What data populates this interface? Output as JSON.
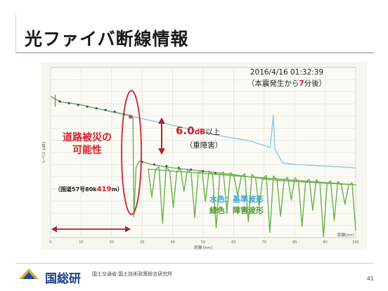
{
  "slide": {
    "title": "光ファイバ断線情報",
    "page_number": "41",
    "org_logo": "国総研",
    "org_name_jp": "国土交通省 国土技術政策総合研究所"
  },
  "chart_data": {
    "type": "line",
    "xlabel": "距離 [km]",
    "x_unit_label": "距離[km]",
    "ylabel": "レベル [dB]",
    "x_ticks": [
      "0",
      "10",
      "20",
      "30",
      "40",
      "50",
      "60",
      "70",
      "80",
      "90",
      "100"
    ],
    "xlim": [
      0,
      100
    ],
    "ylim": [
      0,
      1
    ],
    "grid": true,
    "series": [
      {
        "name": "水色：基準波形",
        "color": "#8cc8e6",
        "points": [
          [
            0,
            0.83
          ],
          [
            3,
            0.8
          ],
          [
            10,
            0.78
          ],
          [
            20,
            0.74
          ],
          [
            27,
            0.71
          ],
          [
            35,
            0.68
          ],
          [
            45,
            0.64
          ],
          [
            55,
            0.6
          ],
          [
            65,
            0.57
          ],
          [
            72,
            0.53
          ],
          [
            73,
            0.72
          ],
          [
            73.5,
            0.52
          ],
          [
            76,
            0.44
          ],
          [
            80,
            0.43
          ],
          [
            90,
            0.42
          ],
          [
            100,
            0.41
          ]
        ]
      },
      {
        "name": "緑色：障害波形",
        "color": "#6ab04c",
        "points": [
          [
            0,
            0.83
          ],
          [
            3,
            0.8
          ],
          [
            10,
            0.78
          ],
          [
            20,
            0.74
          ],
          [
            26,
            0.72
          ],
          [
            27,
            0.71
          ],
          [
            27.3,
            0.12
          ],
          [
            28,
            0.41
          ],
          [
            29,
            0.45
          ],
          [
            33,
            0.43
          ],
          [
            40,
            0.41
          ],
          [
            50,
            0.39
          ],
          [
            60,
            0.37
          ],
          [
            72,
            0.34
          ],
          [
            80,
            0.33
          ],
          [
            90,
            0.32
          ],
          [
            100,
            0.31
          ]
        ]
      }
    ],
    "annotations": {
      "timestamp": "2016/4/16 01:32:39",
      "timestamp_note_prefix": "（本震発生から",
      "timestamp_note_number": "7",
      "timestamp_note_suffix": "分後）",
      "loss_value": "6.0",
      "loss_unit": "dB",
      "loss_suffix": "以上",
      "loss_note": "（重障害）",
      "hazard_label_line1": "道路被災の",
      "hazard_label_line2": "可能性",
      "location_prefix": "（国道57号80k",
      "location_number": "419",
      "location_suffix": "m）",
      "legend_line1_prefix": "水色",
      "legend_line1_text": "：基準波形",
      "legend_line2_prefix": "緑色",
      "legend_line2_text": "：障害波形"
    }
  }
}
